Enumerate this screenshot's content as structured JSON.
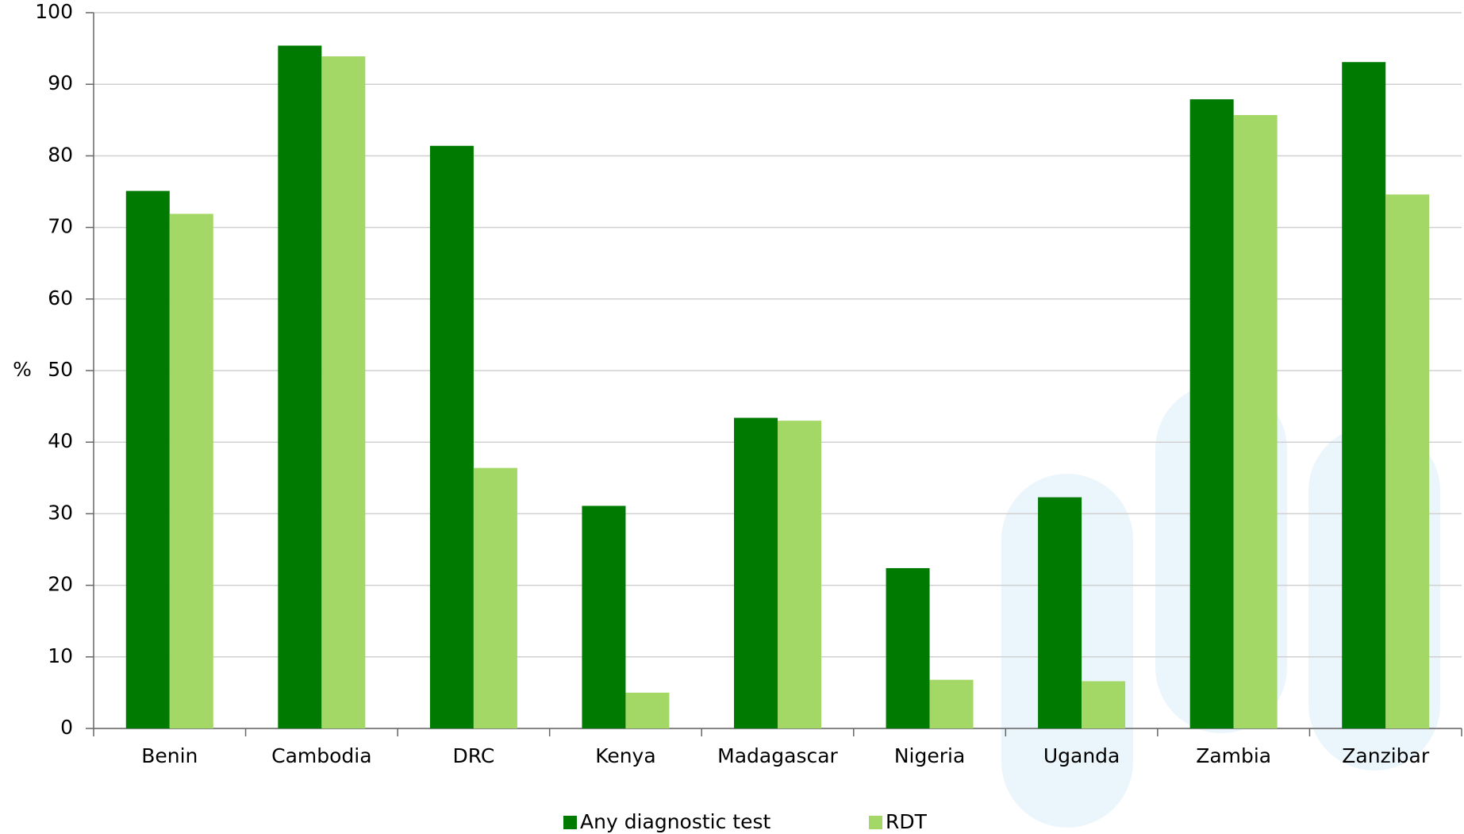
{
  "chart_data": {
    "type": "bar",
    "y_label": "%",
    "categories": [
      "Benin",
      "Cambodia",
      "DRC",
      "Kenya",
      "Madagascar",
      "Nigeria",
      "Uganda",
      "Zambia",
      "Zanzibar"
    ],
    "series": [
      {
        "name": "Any diagnostic test",
        "color": "#007a00",
        "values": [
          75.1,
          95.4,
          81.4,
          31.1,
          43.4,
          22.4,
          32.3,
          87.9,
          93.1
        ]
      },
      {
        "name": "RDT",
        "color": "#a3d866",
        "values": [
          71.9,
          93.9,
          36.4,
          5.0,
          43.0,
          6.8,
          6.6,
          85.7,
          74.6
        ]
      }
    ],
    "ylim": [
      0,
      100
    ],
    "yticks": [
      0,
      10,
      20,
      30,
      40,
      50,
      60,
      70,
      80,
      90,
      100
    ],
    "grid": true,
    "legend": "bottom"
  }
}
